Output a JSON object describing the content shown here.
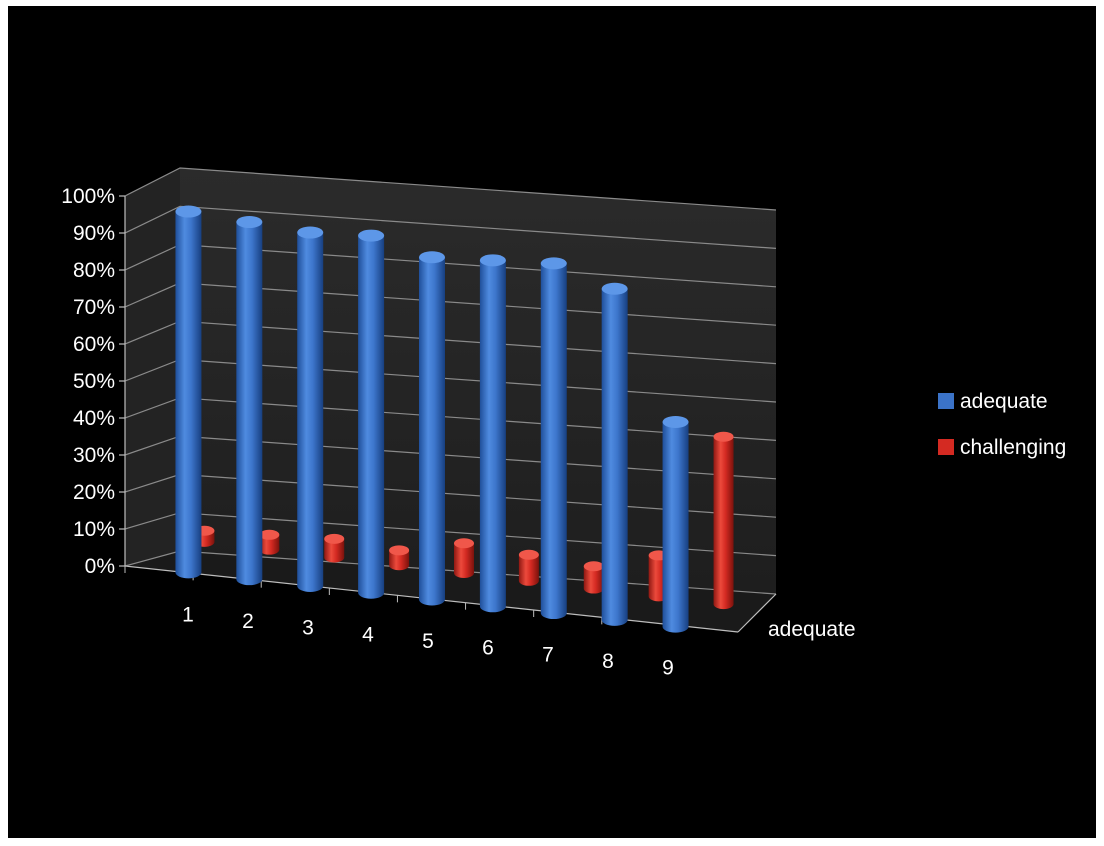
{
  "chart_data": {
    "type": "bar",
    "style": "3d-cylinder",
    "categories": [
      "1",
      "2",
      "3",
      "4",
      "5",
      "6",
      "7",
      "8",
      "9"
    ],
    "series": [
      {
        "name": "adequate",
        "color": "#3b73c8",
        "values": [
          97,
          96,
          95,
          96,
          92,
          93,
          94,
          89,
          55
        ]
      },
      {
        "name": "challenging",
        "color": "#d42a22",
        "values": [
          3,
          4,
          5,
          4,
          8,
          7,
          6,
          11,
          45
        ]
      }
    ],
    "depth_axis_label": "adequate",
    "y_ticks": [
      "0%",
      "10%",
      "20%",
      "30%",
      "40%",
      "50%",
      "60%",
      "70%",
      "80%",
      "90%",
      "100%"
    ],
    "ylim": [
      0,
      100
    ],
    "grid": true,
    "legend_position": "right",
    "title": "",
    "xlabel": "",
    "ylabel": ""
  }
}
